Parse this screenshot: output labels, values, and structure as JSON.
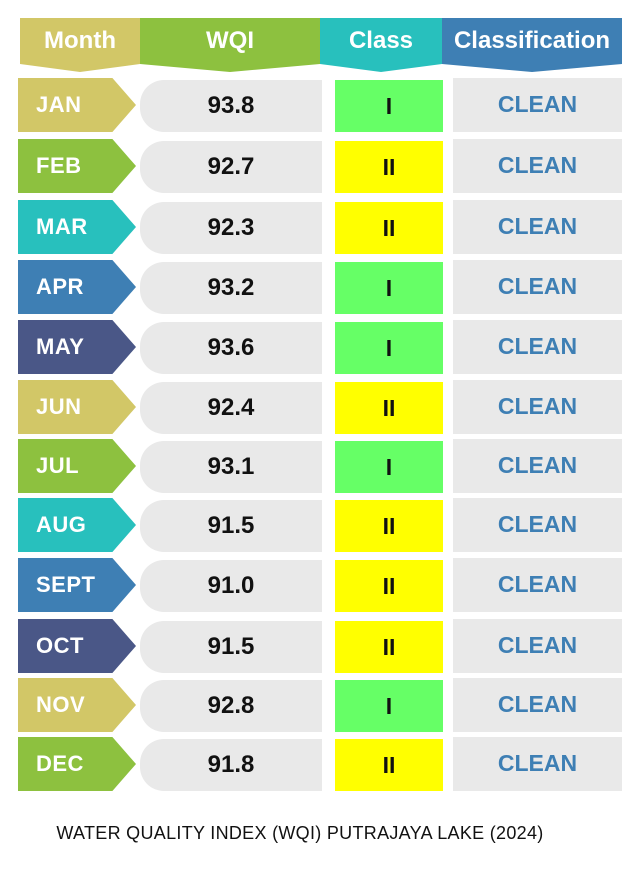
{
  "header": {
    "month": "Month",
    "wqi": "WQI",
    "class": "Class",
    "classification": "Classification",
    "colors": {
      "month": "#d2c767",
      "wqi": "#8dc13f",
      "class": "#28c0bd",
      "classification": "#3e7fb4"
    }
  },
  "rows": [
    {
      "month": "JAN",
      "wqi": "93.8",
      "class": "I",
      "classification": "CLEAN",
      "month_color": "#d2c767",
      "class_color": "#66ff66"
    },
    {
      "month": "FEB",
      "wqi": "92.7",
      "class": "II",
      "classification": "CLEAN",
      "month_color": "#8dc13f",
      "class_color": "#ffff00"
    },
    {
      "month": "MAR",
      "wqi": "92.3",
      "class": "II",
      "classification": "CLEAN",
      "month_color": "#28c0bd",
      "class_color": "#ffff00"
    },
    {
      "month": "APR",
      "wqi": "93.2",
      "class": "I",
      "classification": "CLEAN",
      "month_color": "#3e7fb4",
      "class_color": "#66ff66"
    },
    {
      "month": "MAY",
      "wqi": "93.6",
      "class": "I",
      "classification": "CLEAN",
      "month_color": "#4a5787",
      "class_color": "#66ff66"
    },
    {
      "month": "JUN",
      "wqi": "92.4",
      "class": "II",
      "classification": "CLEAN",
      "month_color": "#d2c767",
      "class_color": "#ffff00"
    },
    {
      "month": "JUL",
      "wqi": "93.1",
      "class": "I",
      "classification": "CLEAN",
      "month_color": "#8dc13f",
      "class_color": "#66ff66"
    },
    {
      "month": "AUG",
      "wqi": "91.5",
      "class": "II",
      "classification": "CLEAN",
      "month_color": "#28c0bd",
      "class_color": "#ffff00"
    },
    {
      "month": "SEPT",
      "wqi": "91.0",
      "class": "II",
      "classification": "CLEAN",
      "month_color": "#3e7fb4",
      "class_color": "#ffff00"
    },
    {
      "month": "OCT",
      "wqi": "91.5",
      "class": "II",
      "classification": "CLEAN",
      "month_color": "#4a5787",
      "class_color": "#ffff00"
    },
    {
      "month": "NOV",
      "wqi": "92.8",
      "class": "I",
      "classification": "CLEAN",
      "month_color": "#d2c767",
      "class_color": "#66ff66"
    },
    {
      "month": "DEC",
      "wqi": "91.8",
      "class": "II",
      "classification": "CLEAN",
      "month_color": "#8dc13f",
      "class_color": "#ffff00"
    }
  ],
  "caption": "WATER QUALITY INDEX (WQI) PUTRAJAYA LAKE (2024)"
}
